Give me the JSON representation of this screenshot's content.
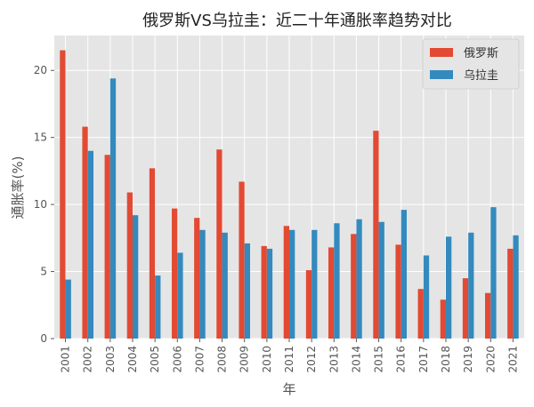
{
  "chart_data": {
    "type": "bar",
    "title": "俄罗斯VS乌拉圭：近二十年通胀率趋势对比",
    "xlabel": "年",
    "ylabel": "通胀率(%)",
    "categories": [
      "2001",
      "2002",
      "2003",
      "2004",
      "2005",
      "2006",
      "2007",
      "2008",
      "2009",
      "2010",
      "2011",
      "2012",
      "2013",
      "2014",
      "2015",
      "2016",
      "2017",
      "2018",
      "2019",
      "2020",
      "2021"
    ],
    "series": [
      {
        "name": "俄罗斯",
        "color": "#E24A33",
        "values": [
          21.5,
          15.8,
          13.7,
          10.9,
          12.7,
          9.7,
          9.0,
          14.1,
          11.7,
          6.9,
          8.4,
          5.1,
          6.8,
          7.8,
          15.5,
          7.0,
          3.7,
          2.9,
          4.5,
          3.4,
          6.7
        ]
      },
      {
        "name": "乌拉圭",
        "color": "#348ABD",
        "values": [
          4.4,
          14.0,
          19.4,
          9.2,
          4.7,
          6.4,
          8.1,
          7.9,
          7.1,
          6.7,
          8.1,
          8.1,
          8.6,
          8.9,
          8.7,
          9.6,
          6.2,
          7.6,
          7.9,
          9.8,
          7.7
        ]
      }
    ],
    "ylim": [
      0,
      22.6
    ],
    "yticks": [
      0,
      5,
      10,
      15,
      20
    ],
    "grid": true,
    "legend_position": "top-right",
    "style": "ggplot"
  }
}
